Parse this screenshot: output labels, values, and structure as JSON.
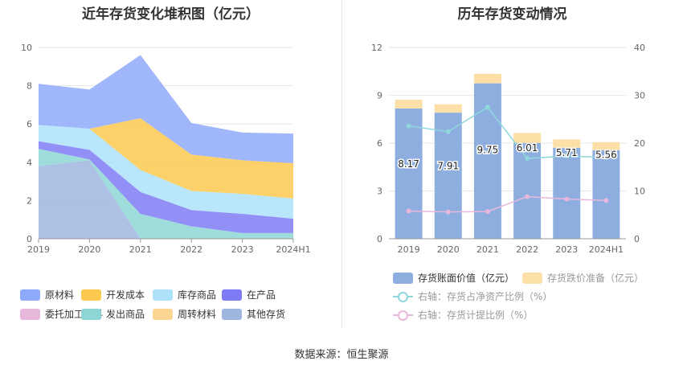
{
  "left_title": "近年存货变化堆积图（亿元）",
  "right_title": "历年存货变动情况",
  "source": "数据来源：恒生聚源",
  "chart_data": [
    {
      "type": "area",
      "title": "近年存货变化堆积图（亿元）",
      "categories": [
        "2019",
        "2020",
        "2021",
        "2022",
        "2023",
        "2024H1"
      ],
      "y_ticks": [
        "0",
        "2",
        "4",
        "6",
        "8",
        "10"
      ],
      "ylim": [
        0,
        10
      ],
      "stack_order_bottom_to_top": [
        "其他存货",
        "发出商品",
        "在产品",
        "库存商品",
        "开发成本",
        "原材料"
      ],
      "series": [
        {
          "name": "原材料",
          "color": "#8faafc",
          "values": [
            2.15,
            2.05,
            3.3,
            1.65,
            1.45,
            1.55
          ]
        },
        {
          "name": "开发成本",
          "color": "#fdc94f",
          "values": [
            0,
            0,
            2.7,
            1.9,
            1.75,
            1.85
          ]
        },
        {
          "name": "库存商品",
          "color": "#ade2fa",
          "values": [
            0.85,
            1.1,
            1.15,
            1.0,
            1.05,
            1.05
          ]
        },
        {
          "name": "在产品",
          "color": "#7f7bf5",
          "values": [
            0.4,
            0.5,
            1.15,
            0.85,
            1.0,
            0.75
          ]
        },
        {
          "name": "委托加工材料",
          "color": "#e8b8dc",
          "values": [
            0,
            0,
            0,
            0,
            0,
            0
          ]
        },
        {
          "name": "发出商品",
          "color": "#8ed6d6",
          "values": [
            0.9,
            0.05,
            1.3,
            0.65,
            0.3,
            0.3
          ]
        },
        {
          "name": "周转材料",
          "color": "#fdd592",
          "values": [
            0,
            0,
            0,
            0,
            0,
            0
          ]
        },
        {
          "name": "其他存货",
          "color": "#9fb6e0",
          "values": [
            3.8,
            4.1,
            0,
            0,
            0,
            0
          ]
        }
      ],
      "legend": [
        "原材料",
        "开发成本",
        "库存商品",
        "在产品",
        "委托加工材料",
        "发出商品",
        "周转材料",
        "其他存货"
      ]
    },
    {
      "type": "bar",
      "title": "历年存货变动情况",
      "categories": [
        "2019",
        "2020",
        "2021",
        "2022",
        "2023",
        "2024H1"
      ],
      "y_ticks_left": [
        "0",
        "3",
        "6",
        "9",
        "12"
      ],
      "ylim_left": [
        0,
        12
      ],
      "y_ticks_right": [
        "0",
        "10",
        "20",
        "30",
        "40"
      ],
      "ylim_right": [
        0,
        40
      ],
      "series": [
        {
          "name": "存货账面价值（亿元）",
          "axis": "left",
          "stack": true,
          "color": "#8eaee0",
          "values": [
            8.17,
            7.91,
            9.75,
            6.01,
            5.71,
            5.56
          ],
          "labels": [
            "8.17",
            "7.91",
            "9.75",
            "6.01",
            "5.71",
            "5.56"
          ]
        },
        {
          "name": "存货跌价准备（亿元）",
          "axis": "left",
          "stack": true,
          "color": "#fddfa8",
          "values": [
            0.55,
            0.52,
            0.6,
            0.62,
            0.52,
            0.5
          ]
        },
        {
          "name": "右轴：存货占净资产比例（%）",
          "axis": "right",
          "type": "line",
          "color": "#8ed8dc",
          "values": [
            23.6,
            22.4,
            27.5,
            16.8,
            17.3,
            17.0
          ]
        },
        {
          "name": "右轴：存货计提比例（%）",
          "axis": "right",
          "type": "line",
          "color": "#e8b8dc",
          "values": [
            5.8,
            5.6,
            5.7,
            8.8,
            8.3,
            8.0
          ]
        }
      ]
    }
  ]
}
